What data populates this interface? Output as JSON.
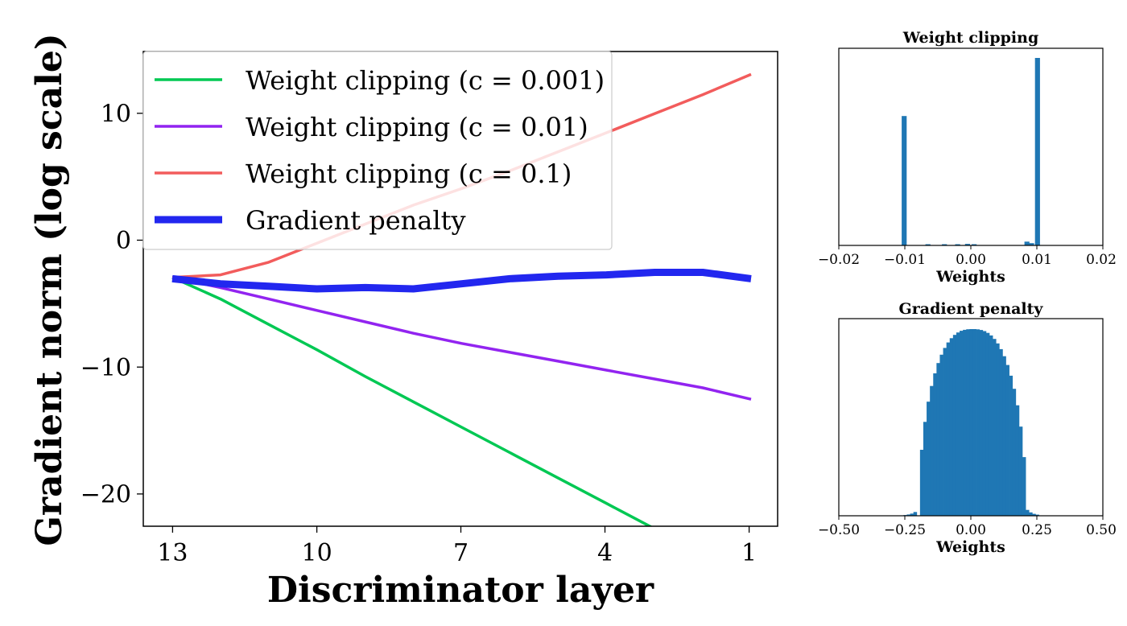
{
  "chart_data": [
    {
      "type": "line",
      "xlabel": "Discriminator layer",
      "ylabel": "Gradient norm (log scale)",
      "x_ticks": [
        13,
        10,
        7,
        4,
        1
      ],
      "y_ticks": [
        10,
        0,
        -10,
        -20
      ],
      "x_tick_labels": [
        "13",
        "10",
        "7",
        "4",
        "1"
      ],
      "y_tick_labels": [
        "10",
        "0",
        "−10",
        "−20"
      ],
      "xlim": [
        13.6,
        0.45
      ],
      "ylim": [
        -22.6,
        14.8
      ],
      "x_reversed": true,
      "legend_position": "top-left",
      "grid": false,
      "series": [
        {
          "name": "Weight clipping (c = 0.001)",
          "color": "#00c853",
          "width": 3.5,
          "x": [
            13,
            12,
            11,
            10,
            9,
            8,
            7,
            6,
            5,
            4,
            3
          ],
          "y": [
            -3.0,
            -4.7,
            -6.7,
            -8.7,
            -10.8,
            -12.8,
            -14.8,
            -16.8,
            -18.8,
            -20.8,
            -22.8
          ]
        },
        {
          "name": "Weight clipping (c = 0.01)",
          "color": "#9224f0",
          "width": 3.5,
          "x": [
            13,
            12,
            11,
            10,
            9,
            8,
            7,
            6,
            5,
            4,
            3,
            2,
            1
          ],
          "y": [
            -3.0,
            -3.8,
            -4.7,
            -5.6,
            -6.5,
            -7.4,
            -8.2,
            -8.9,
            -9.6,
            -10.3,
            -11.0,
            -11.7,
            -12.6
          ]
        },
        {
          "name": "Weight clipping (c = 0.1)",
          "color": "#f25c5c",
          "width": 3.5,
          "x": [
            13,
            12,
            11,
            10,
            9,
            8,
            7,
            6,
            5,
            4,
            3,
            2,
            1
          ],
          "y": [
            -3.0,
            -2.8,
            -1.8,
            -0.3,
            1.2,
            2.7,
            4.0,
            5.4,
            6.9,
            8.4,
            9.9,
            11.4,
            13.0
          ]
        },
        {
          "name": "Gradient penalty",
          "color": "#2227ef",
          "width": 9,
          "x": [
            13,
            12,
            11,
            10,
            9,
            8,
            7,
            6,
            5,
            4,
            3,
            2,
            1
          ],
          "y": [
            -3.1,
            -3.5,
            -3.7,
            -3.9,
            -3.8,
            -3.9,
            -3.5,
            -3.1,
            -2.9,
            -2.8,
            -2.6,
            -2.6,
            -3.1
          ]
        }
      ]
    },
    {
      "type": "bar",
      "title": "Weight clipping",
      "xlabel": "Weights",
      "x_ticks": [
        -0.02,
        -0.01,
        0.0,
        0.01,
        0.02
      ],
      "x_tick_labels": [
        "−0.02",
        "−0.01",
        "0.00",
        "0.01",
        "0.02"
      ],
      "xlim": [
        -0.02,
        0.02
      ],
      "color": "#1f77b4",
      "bin_width": 0.00025,
      "bars": [
        {
          "x": -0.0101,
          "h": 0.69
        },
        {
          "x": -0.0065,
          "h": 0.006
        },
        {
          "x": -0.004,
          "h": 0.005
        },
        {
          "x": -0.002,
          "h": 0.006
        },
        {
          "x": -0.0005,
          "h": 0.008
        },
        {
          "x": 0.0005,
          "h": 0.006
        },
        {
          "x": 0.0085,
          "h": 0.02
        },
        {
          "x": 0.0092,
          "h": 0.012
        },
        {
          "x": 0.0101,
          "h": 1.0
        }
      ]
    },
    {
      "type": "bar",
      "title": "Gradient penalty",
      "xlabel": "Weights",
      "x_ticks": [
        -0.5,
        -0.25,
        0.0,
        0.25,
        0.5
      ],
      "x_tick_labels": [
        "−0.50",
        "−0.25",
        "0.00",
        "0.25",
        "0.50"
      ],
      "xlim": [
        -0.5,
        0.5
      ],
      "color": "#1f77b4",
      "distribution": "flat-top",
      "center": 0.0,
      "half_width": 0.205,
      "bin_width": 0.0125
    }
  ]
}
